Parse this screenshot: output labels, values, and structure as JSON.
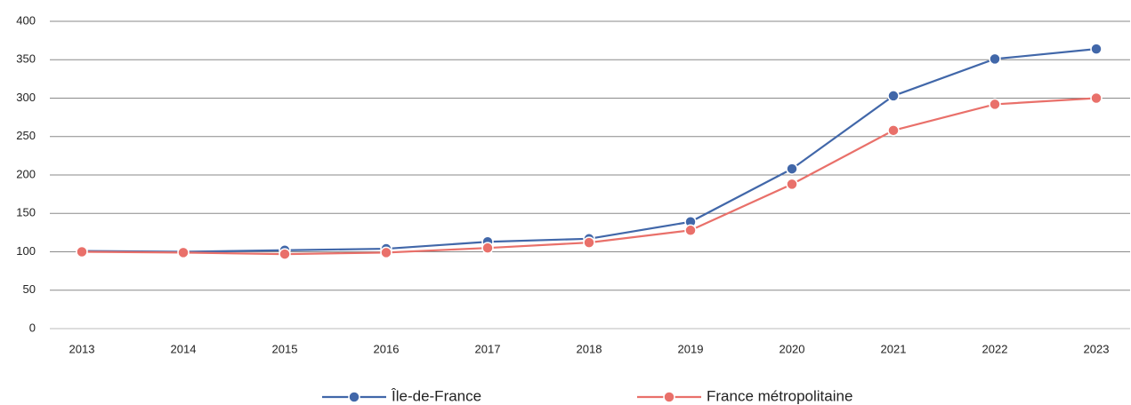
{
  "chart_data": {
    "type": "line",
    "categories": [
      "2013",
      "2014",
      "2015",
      "2016",
      "2017",
      "2018",
      "2019",
      "2020",
      "2021",
      "2022",
      "2023"
    ],
    "series": [
      {
        "name": "Île-de-France",
        "color": "#4167a9",
        "values": [
          101,
          100,
          102,
          104,
          113,
          117,
          139,
          208,
          303,
          351,
          364
        ]
      },
      {
        "name": "France métropolitaine",
        "color": "#e9706a",
        "values": [
          100,
          99,
          97,
          99,
          105,
          112,
          128,
          188,
          258,
          292,
          300
        ]
      }
    ],
    "ylim": [
      0,
      400
    ],
    "yticks": [
      0,
      50,
      100,
      150,
      200,
      250,
      300,
      350,
      400
    ],
    "grid": true,
    "legend": "bottom"
  }
}
